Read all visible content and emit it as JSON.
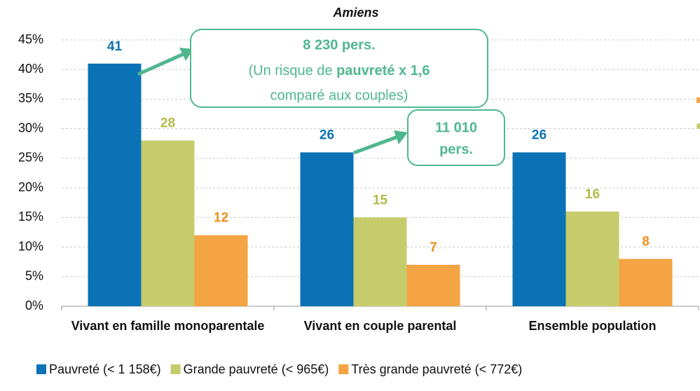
{
  "chart_data": {
    "type": "bar",
    "title": "Amiens",
    "categories": [
      "Vivant en famille monoparentale",
      "Vivant en couple parental",
      "Ensemble population"
    ],
    "series": [
      {
        "name": "Pauvreté (< 1 158€)",
        "color": "#0b72b5",
        "label_color": "#0b72b5",
        "values": [
          41,
          26,
          26
        ]
      },
      {
        "name": "Grande pauvreté (< 965€)",
        "color": "#c6cc6b",
        "label_color": "#b4bb4a",
        "values": [
          28,
          15,
          16
        ]
      },
      {
        "name": "Très grande pauvreté (< 772€)",
        "color": "#f4a443",
        "label_color": "#ef8f1c",
        "values": [
          12,
          7,
          8
        ]
      }
    ],
    "ylim": [
      0,
      45
    ],
    "yticks": [
      {
        "value": 0,
        "label": "0%"
      },
      {
        "value": 5,
        "label": "5%"
      },
      {
        "value": 10,
        "label": "10%"
      },
      {
        "value": 15,
        "label": "15%"
      },
      {
        "value": 20,
        "label": "20%"
      },
      {
        "value": 25,
        "label": "25%"
      },
      {
        "value": 30,
        "label": "30%"
      },
      {
        "value": 35,
        "label": "35%"
      },
      {
        "value": 40,
        "label": "40%"
      },
      {
        "value": 45,
        "label": "45%"
      }
    ],
    "grid": true,
    "legend": "bottom",
    "annotations": [
      {
        "lines": [
          [
            "8 230 pers."
          ],
          [
            "(Un risque de ",
            "pauvreté x 1,6"
          ],
          [
            "comparé aux couples)"
          ]
        ]
      },
      {
        "lines": [
          [
            "11 010"
          ],
          [
            "pers."
          ]
        ]
      }
    ]
  }
}
